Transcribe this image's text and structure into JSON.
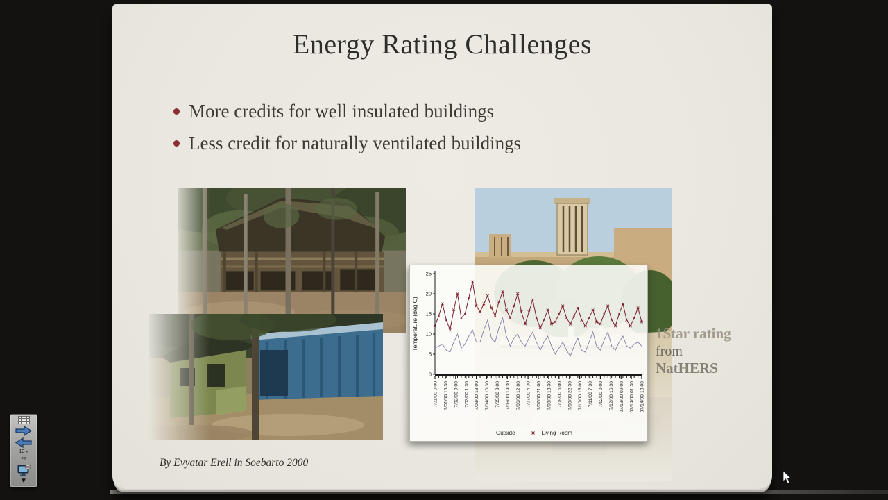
{
  "slide": {
    "title": "Energy Rating Challenges",
    "bullets": [
      "More credits for well insulated buildings",
      "Less credit for naturally ventilated buildings"
    ],
    "note": {
      "line1": "1Star rating",
      "line2": "from",
      "line3": "NatHERS"
    },
    "citation": "By Evyatar Erell in Soebarto 2000"
  },
  "toolbar": {
    "slide_current": "13",
    "slide_total": "27"
  },
  "photos": [
    {
      "name": "thatched-house",
      "alt": "two-storey thatched-roof house among trees"
    },
    {
      "name": "green-house",
      "alt": "green house with blue corrugated shed and trees"
    },
    {
      "name": "courtyard-windcatcher",
      "alt": "mud-brick courtyard house with windcatcher tower"
    }
  ],
  "colors": {
    "slide_bg": "#e9e7df",
    "bullet": "#8b3032",
    "outside_line": "#7d7fa6",
    "living_room_line": "#7a1e2c",
    "axis": "#1a1a1a"
  },
  "chart_data": {
    "type": "line",
    "title": "",
    "xlabel": "",
    "ylabel": "Temperature (deg C)",
    "ylim": [
      0,
      25
    ],
    "yticks": [
      0,
      5,
      10,
      15,
      20,
      25
    ],
    "grid": false,
    "legend_position": "bottom",
    "x_tick_labels": [
      "7/01/00 0:00",
      "7/01/00 16:30",
      "7/02/00 9:00",
      "7/03/00 1:30",
      "7/03/00 18:00",
      "7/04/00 10:30",
      "7/05/00 3:00",
      "7/05/00 19:30",
      "7/06/00 12:00",
      "7/07/00 4:30",
      "7/07/00 21:00",
      "7/08/00 13:30",
      "7/09/00 6:00",
      "7/09/00 22:30",
      "7/10/00 15:00",
      "7/11/00 7:30",
      "7/12/00 0:00",
      "7/12/00 16:30",
      "07/13/00 09:00",
      "07/14/00 01:30",
      "07/14/00 18:00"
    ],
    "series": [
      {
        "name": "Outside",
        "color": "#7d7fa6",
        "marker": "none",
        "values": [
          6.5,
          7,
          7.5,
          6,
          5.5,
          8,
          10,
          6.5,
          7.5,
          9.5,
          11,
          8,
          8,
          11,
          13.5,
          9,
          8,
          11.5,
          14,
          9.5,
          7,
          9,
          10,
          8,
          7,
          9,
          10.5,
          8,
          6,
          8,
          9.5,
          7,
          5,
          6.5,
          8,
          6,
          4.5,
          7,
          9,
          6,
          5.5,
          8,
          10.5,
          7,
          6,
          8.5,
          10.5,
          7,
          6,
          8,
          9.5,
          7,
          6.5,
          7.5,
          8,
          7
        ]
      },
      {
        "name": "Living Room",
        "color": "#7a1e2c",
        "marker": "x",
        "values": [
          12,
          14.5,
          17.5,
          13.5,
          11,
          16,
          20,
          14,
          15,
          19,
          23,
          17,
          15.5,
          17.5,
          19.5,
          16.5,
          14.5,
          18,
          20.5,
          16,
          14,
          17,
          20,
          15.5,
          12.5,
          15.5,
          18.5,
          14,
          11.5,
          13.5,
          16,
          12.5,
          13,
          15,
          17,
          14,
          12.5,
          14.5,
          16.5,
          13.5,
          12,
          14,
          16,
          13,
          12.5,
          15,
          17,
          13.5,
          12,
          15,
          17.5,
          13.5,
          12,
          14,
          16.5,
          13
        ]
      }
    ]
  }
}
